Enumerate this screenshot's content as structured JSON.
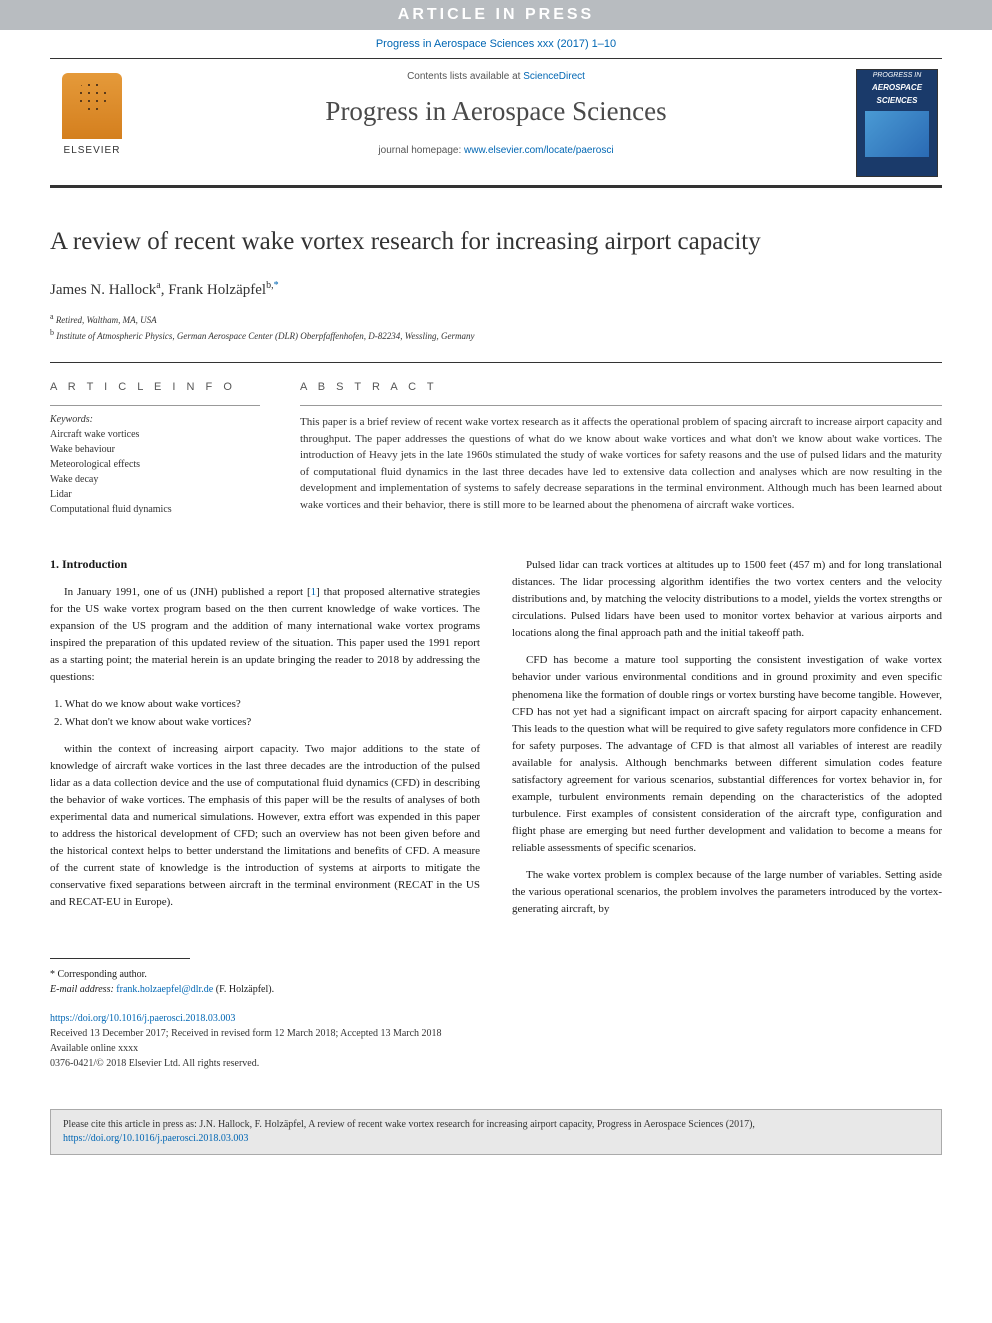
{
  "banner": "ARTICLE IN PRESS",
  "citation_line": "Progress in Aerospace Sciences xxx (2017) 1–10",
  "contents_prefix": "Contents lists available at ",
  "contents_link": "ScienceDirect",
  "journal_title": "Progress in Aerospace Sciences",
  "homepage_prefix": "journal homepage: ",
  "homepage_link": "www.elsevier.com/locate/paerosci",
  "elsevier_label": "ELSEVIER",
  "cover_line1": "PROGRESS IN",
  "cover_line2": "AEROSPACE",
  "cover_line3": "SCIENCES",
  "article_title": "A review of recent wake vortex research for increasing airport capacity",
  "authors_html": "James N. Hallock",
  "author1_sup": "a",
  "author2": "Frank Holzäpfel",
  "author2_sup": "b,",
  "corr_marker": "*",
  "affil_a": "Retired, Waltham, MA, USA",
  "affil_b": "Institute of Atmospheric Physics, German Aerospace Center (DLR) Oberpfaffenhofen, D-82234, Wessling, Germany",
  "info_heading": "A R T I C L E  I N F O",
  "keywords_label": "Keywords:",
  "keywords": [
    "Aircraft wake vortices",
    "Wake behaviour",
    "Meteorological effects",
    "Wake decay",
    "Lidar",
    "Computational fluid dynamics"
  ],
  "abstract_heading": "A B S T R A C T",
  "abstract_text": "This paper is a brief review of recent wake vortex research as it affects the operational problem of spacing aircraft to increase airport capacity and throughput. The paper addresses the questions of what do we know about wake vortices and what don't we know about wake vortices. The introduction of Heavy jets in the late 1960s stimulated the study of wake vortices for safety reasons and the use of pulsed lidars and the maturity of computational fluid dynamics in the last three decades have led to extensive data collection and analyses which are now resulting in the development and implementation of systems to safely decrease separations in the terminal environment. Although much has been learned about wake vortices and their behavior, there is still more to be learned about the phenomena of aircraft wake vortices.",
  "section1_heading": "1.  Introduction",
  "col1_p1": "In January 1991, one of us (JNH) published a report [1] that proposed alternative strategies for the US wake vortex program based on the then current knowledge of wake vortices. The expansion of the US program and the addition of many international wake vortex programs inspired the preparation of this updated review of the situation. This paper used the 1991 report as a starting point; the material herein is an update bringing the reader to 2018 by addressing the questions:",
  "q1": "1. What do we know about wake vortices?",
  "q2": "2. What don't we know about wake vortices?",
  "col1_p2": "within the context of increasing airport capacity. Two major additions to the state of knowledge of aircraft wake vortices in the last three decades are the introduction of the pulsed lidar as a data collection device and the use of computational fluid dynamics (CFD) in describing the behavior of wake vortices. The emphasis of this paper will be the results of analyses of both experimental data and numerical simulations. However, extra effort was expended in this paper to address the historical development of CFD; such an overview has not been given before and the historical context helps to better understand the limitations and benefits of CFD. A measure of the current state of knowledge is the introduction of systems at airports to mitigate the conservative fixed separations between aircraft in the terminal environment (RECAT in the US and RECAT-EU in Europe).",
  "col2_p1": "Pulsed lidar can track vortices at altitudes up to 1500 feet (457 m) and for long translational distances. The lidar processing algorithm identifies the two vortex centers and the velocity distributions and, by matching the velocity distributions to a model, yields the vortex strengths or circulations. Pulsed lidars have been used to monitor vortex behavior at various airports and locations along the final approach path and the initial takeoff path.",
  "col2_p2": "CFD has become a mature tool supporting the consistent investigation of wake vortex behavior under various environmental conditions and in ground proximity and even specific phenomena like the formation of double rings or vortex bursting have become tangible. However, CFD has not yet had a significant impact on aircraft spacing for airport capacity enhancement. This leads to the question what will be required to give safety regulators more confidence in CFD for safety purposes. The advantage of CFD is that almost all variables of interest are readily available for analysis. Although benchmarks between different simulation codes feature satisfactory agreement for various scenarios, substantial differences for vortex behavior in, for example, turbulent environments remain depending on the characteristics of the adopted turbulence. First examples of consistent consideration of the aircraft type, configuration and flight phase are emerging but need further development and validation to become a means for reliable assessments of specific scenarios.",
  "col2_p3": "The wake vortex problem is complex because of the large number of variables. Setting aside the various operational scenarios, the problem involves the parameters introduced by the vortex-generating aircraft, by",
  "corr_author_label": "* Corresponding author.",
  "email_label": "E-mail address:",
  "email": "frank.holzaepfel@dlr.de",
  "email_suffix": "(F. Holzäpfel).",
  "doi": "https://doi.org/10.1016/j.paerosci.2018.03.003",
  "received": "Received 13 December 2017; Received in revised form 12 March 2018; Accepted 13 March 2018",
  "available": "Available online xxxx",
  "copyright": "0376-0421/© 2018 Elsevier Ltd. All rights reserved.",
  "cite_text": "Please cite this article in press as: J.N. Hallock, F. Holzäpfel, A review of recent wake vortex research for increasing airport capacity, Progress in Aerospace Sciences (2017), ",
  "cite_doi": "https://doi.org/10.1016/j.paerosci.2018.03.003"
}
